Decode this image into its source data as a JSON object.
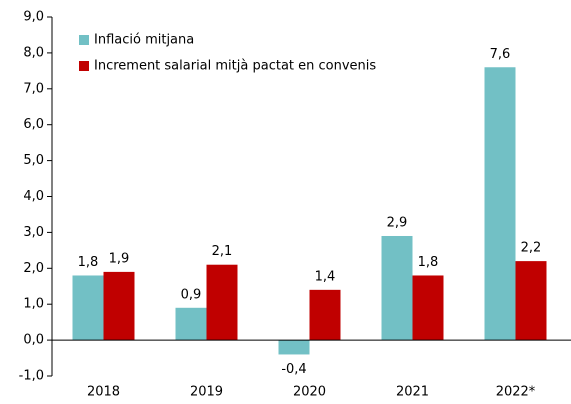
{
  "chart_data": {
    "type": "bar",
    "categories": [
      "2018",
      "2019",
      "2020",
      "2021",
      "2022*"
    ],
    "series": [
      {
        "name": "Inflació mitjana",
        "color": "#72c0c5",
        "values": [
          1.8,
          0.9,
          -0.4,
          2.9,
          7.6
        ],
        "value_labels": [
          "1,8",
          "0,9",
          "-0,4",
          "2,9",
          "7,6"
        ]
      },
      {
        "name": "Increment salarial mitjà pactat en convenis",
        "color": "#c00000",
        "values": [
          1.9,
          2.1,
          1.4,
          1.8,
          2.2
        ],
        "value_labels": [
          "1,9",
          "2,1",
          "1,4",
          "1,8",
          "2,2"
        ]
      }
    ],
    "ylim": [
      -1,
      9
    ],
    "yticks": [
      {
        "value": -1,
        "label": "-1,0"
      },
      {
        "value": 0,
        "label": "0,0"
      },
      {
        "value": 1,
        "label": "1,0"
      },
      {
        "value": 2,
        "label": "2,0"
      },
      {
        "value": 3,
        "label": "3,0"
      },
      {
        "value": 4,
        "label": "4,0"
      },
      {
        "value": 5,
        "label": "5,0"
      },
      {
        "value": 6,
        "label": "6,0"
      },
      {
        "value": 7,
        "label": "7,0"
      },
      {
        "value": 8,
        "label": "8,0"
      },
      {
        "value": 9,
        "label": "9,0"
      }
    ],
    "grid": false,
    "legend": "top-left"
  }
}
